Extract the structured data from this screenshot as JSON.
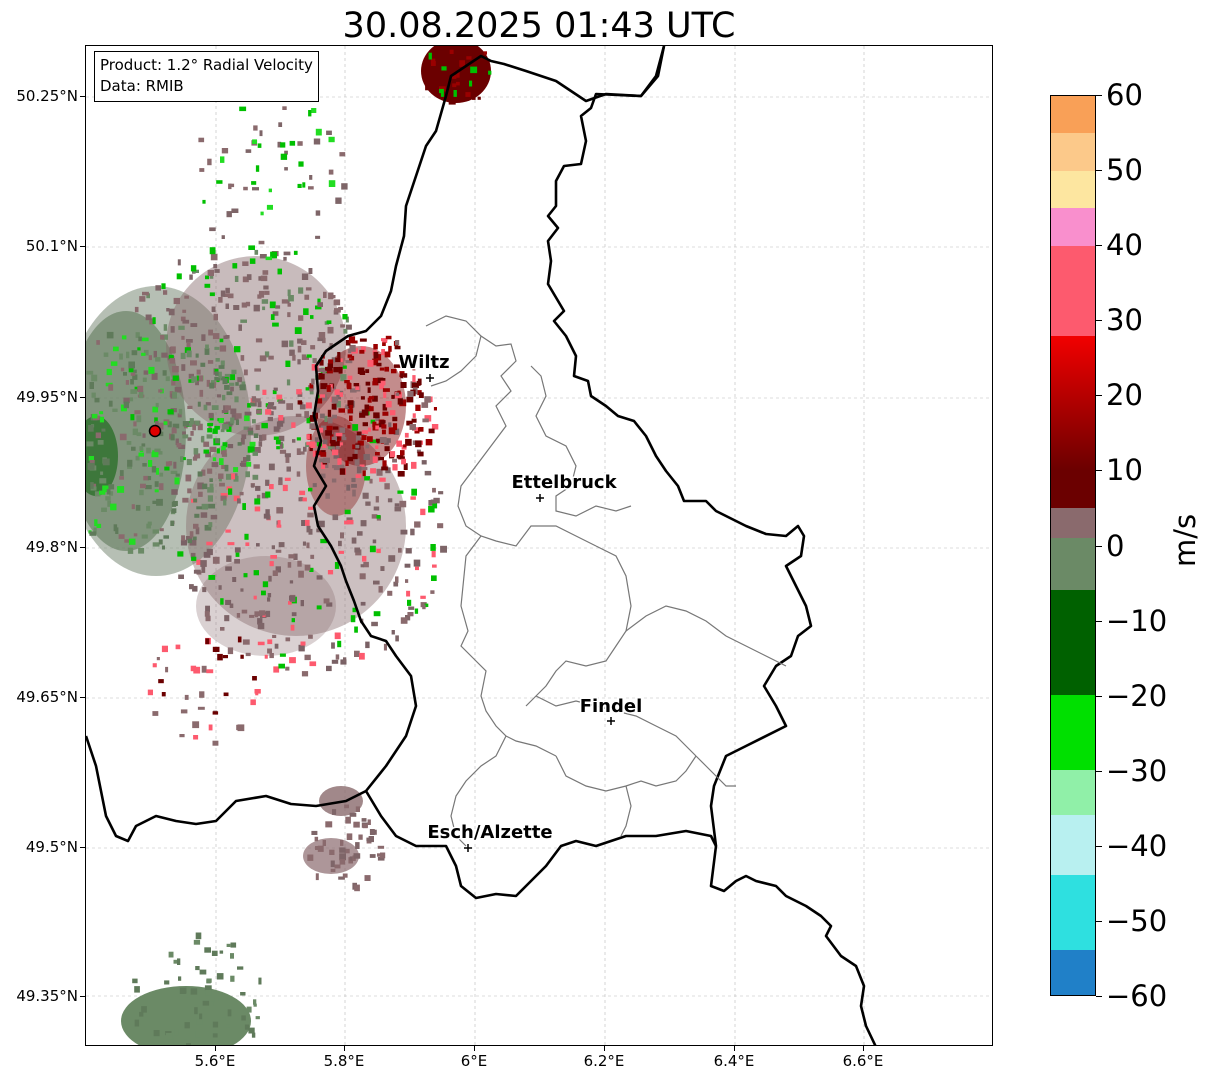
{
  "title": "30.08.2025 01:43 UTC",
  "info_box": {
    "product": "Product: 1.2° Radial Velocity",
    "data": "Data: RMIB"
  },
  "map": {
    "lon_range": [
      5.4,
      6.8
    ],
    "lat_range": [
      49.3,
      50.3
    ],
    "y_ticks": [
      "50.25°N",
      "50.1°N",
      "49.95°N",
      "49.8°N",
      "49.65°N",
      "49.5°N",
      "49.35°N"
    ],
    "x_ticks": [
      "5.6°E",
      "5.8°E",
      "6°E",
      "6.2°E",
      "6.4°E",
      "6.6°E"
    ],
    "radar_site": "radar-marker",
    "cities": [
      {
        "name": "Wiltz"
      },
      {
        "name": "Ettelbruck"
      },
      {
        "name": "Findel"
      },
      {
        "name": "Esch/Alzette"
      }
    ]
  },
  "colorbar": {
    "unit": "m/s",
    "min": -60,
    "max": 60,
    "tick_labels": [
      "60",
      "50",
      "40",
      "30",
      "20",
      "10",
      "0",
      "−10",
      "−20",
      "−30",
      "−40",
      "−50",
      "−60"
    ],
    "colors": {
      "orange": "#f9a057",
      "light_orange": "#fcc98a",
      "pale_yellow": "#fde6a0",
      "pink": "#f98fcd",
      "rose": "#fd5a6e",
      "red": "#f20000",
      "dark_red": "#6b0000",
      "mauve": "#8a6a6d",
      "grey_green": "#6b8a66",
      "dark_green": "#006100",
      "green": "#00e000",
      "light_green": "#90f0a8",
      "pale_cyan": "#b8f0f0",
      "cyan": "#2ee0e0",
      "blue": "#2080c8"
    }
  }
}
